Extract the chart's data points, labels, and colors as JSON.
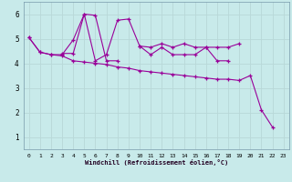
{
  "background_color": "#c8eaea",
  "grid_color": "#aacccc",
  "line_color": "#990099",
  "marker": "+",
  "xlabel": "Windchill (Refroidissement éolien,°C)",
  "xlim": [
    -0.5,
    23.5
  ],
  "ylim": [
    0.5,
    6.5
  ],
  "yticks": [
    1,
    2,
    3,
    4,
    5,
    6
  ],
  "xticks": [
    0,
    1,
    2,
    3,
    4,
    5,
    6,
    7,
    8,
    9,
    10,
    11,
    12,
    13,
    14,
    15,
    16,
    17,
    18,
    19,
    20,
    21,
    22,
    23
  ],
  "series": [
    {
      "x": [
        0,
        1,
        2,
        3,
        4,
        5,
        6,
        7,
        8
      ],
      "y": [
        5.05,
        4.45,
        4.35,
        4.35,
        4.95,
        6.0,
        5.95,
        4.1,
        4.1
      ]
    },
    {
      "x": [
        3,
        4,
        5,
        6,
        7,
        8,
        9,
        10,
        11,
        12,
        13,
        14,
        15,
        16,
        17,
        18
      ],
      "y": [
        4.4,
        4.4,
        6.0,
        4.1,
        4.35,
        5.75,
        5.8,
        4.7,
        4.35,
        4.65,
        4.35,
        4.35,
        4.35,
        4.65,
        4.1,
        4.1
      ]
    },
    {
      "x": [
        10,
        11,
        12,
        13,
        14,
        15,
        16,
        17,
        18,
        19
      ],
      "y": [
        4.7,
        4.65,
        4.8,
        4.65,
        4.8,
        4.65,
        4.65,
        4.65,
        4.65,
        4.8
      ]
    },
    {
      "x": [
        0,
        1,
        2,
        3,
        4,
        5,
        6,
        7,
        8,
        9,
        10,
        11,
        12,
        13,
        14,
        15,
        16,
        17,
        18,
        19,
        20,
        21,
        22
      ],
      "y": [
        5.05,
        4.45,
        4.35,
        4.3,
        4.1,
        4.05,
        4.0,
        3.95,
        3.85,
        3.8,
        3.7,
        3.65,
        3.6,
        3.55,
        3.5,
        3.45,
        3.4,
        3.35,
        3.35,
        3.3,
        3.5,
        2.1,
        1.4
      ]
    }
  ]
}
